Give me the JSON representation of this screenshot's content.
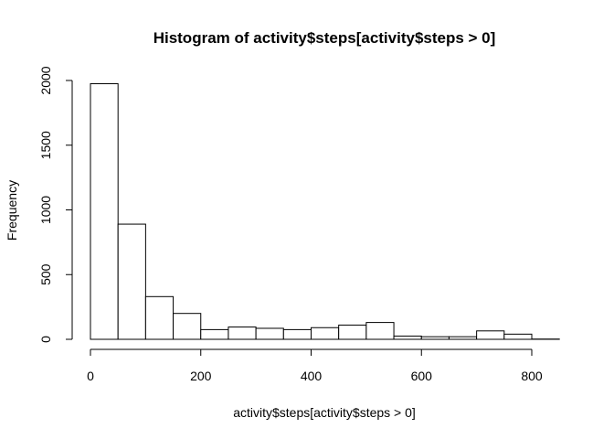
{
  "chart_data": {
    "type": "bar",
    "title": "Histogram of activity$steps[activity$steps > 0]",
    "xlabel": "activity$steps[activity$steps > 0]",
    "ylabel": "Frequency",
    "bin_width": 50,
    "bins": [
      {
        "start": 0,
        "end": 50,
        "count": 1975
      },
      {
        "start": 50,
        "end": 100,
        "count": 890
      },
      {
        "start": 100,
        "end": 150,
        "count": 330
      },
      {
        "start": 150,
        "end": 200,
        "count": 200
      },
      {
        "start": 200,
        "end": 250,
        "count": 75
      },
      {
        "start": 250,
        "end": 300,
        "count": 95
      },
      {
        "start": 300,
        "end": 350,
        "count": 85
      },
      {
        "start": 350,
        "end": 400,
        "count": 75
      },
      {
        "start": 400,
        "end": 450,
        "count": 90
      },
      {
        "start": 450,
        "end": 500,
        "count": 110
      },
      {
        "start": 500,
        "end": 550,
        "count": 130
      },
      {
        "start": 550,
        "end": 600,
        "count": 25
      },
      {
        "start": 600,
        "end": 650,
        "count": 20
      },
      {
        "start": 650,
        "end": 700,
        "count": 20
      },
      {
        "start": 700,
        "end": 750,
        "count": 65
      },
      {
        "start": 750,
        "end": 800,
        "count": 40
      },
      {
        "start": 800,
        "end": 850,
        "count": 2
      }
    ],
    "xticks": [
      0,
      200,
      400,
      600,
      800
    ],
    "xtick_labels": [
      "0",
      "200",
      "400",
      "600",
      "800"
    ],
    "yticks": [
      0,
      500,
      1000,
      1500,
      2000
    ],
    "ytick_labels": [
      "0",
      "500",
      "1000",
      "1500",
      "2000"
    ],
    "xlim": [
      0,
      850
    ],
    "ylim": [
      0,
      2000
    ],
    "grid": false,
    "legend": "none",
    "bar_fill": "#ffffff",
    "bar_stroke": "#000000"
  }
}
